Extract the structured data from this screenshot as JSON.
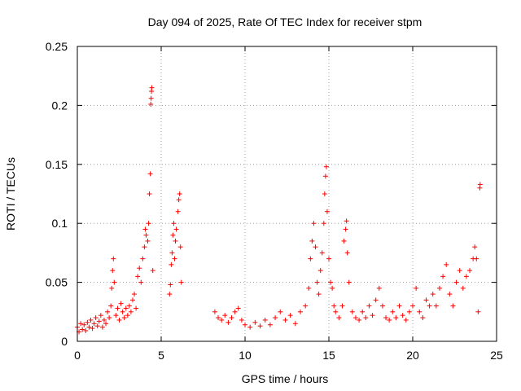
{
  "chart_data": {
    "type": "scatter",
    "title": "Day 094 of 2025, Rate Of TEC Index for receiver stpm",
    "xlabel": "GPS time / hours",
    "ylabel": "ROTI / TECUs",
    "xlim": [
      0,
      25
    ],
    "ylim": [
      0,
      0.25
    ],
    "xticks": [
      "0",
      "5",
      "10",
      "15",
      "20",
      "25"
    ],
    "yticks": [
      "0",
      "0.05",
      "0.1",
      "0.15",
      "0.2",
      "0.25"
    ],
    "grid": true,
    "marker": "+",
    "series_color": "#ff0000",
    "series": [
      {
        "name": "ROTI",
        "points": [
          [
            0.0,
            0.012
          ],
          [
            0.1,
            0.008
          ],
          [
            0.2,
            0.015
          ],
          [
            0.3,
            0.01
          ],
          [
            0.4,
            0.014
          ],
          [
            0.5,
            0.009
          ],
          [
            0.6,
            0.016
          ],
          [
            0.7,
            0.012
          ],
          [
            0.8,
            0.018
          ],
          [
            0.9,
            0.011
          ],
          [
            1.0,
            0.015
          ],
          [
            1.1,
            0.02
          ],
          [
            1.2,
            0.013
          ],
          [
            1.3,
            0.017
          ],
          [
            1.4,
            0.022
          ],
          [
            1.5,
            0.012
          ],
          [
            1.6,
            0.018
          ],
          [
            1.7,
            0.015
          ],
          [
            1.8,
            0.025
          ],
          [
            1.9,
            0.02
          ],
          [
            2.0,
            0.03
          ],
          [
            2.05,
            0.045
          ],
          [
            2.1,
            0.06
          ],
          [
            2.15,
            0.07
          ],
          [
            2.2,
            0.05
          ],
          [
            2.3,
            0.022
          ],
          [
            2.4,
            0.028
          ],
          [
            2.5,
            0.018
          ],
          [
            2.6,
            0.032
          ],
          [
            2.7,
            0.025
          ],
          [
            2.8,
            0.02
          ],
          [
            2.9,
            0.028
          ],
          [
            3.0,
            0.022
          ],
          [
            3.1,
            0.03
          ],
          [
            3.2,
            0.025
          ],
          [
            3.3,
            0.035
          ],
          [
            3.4,
            0.04
          ],
          [
            3.5,
            0.028
          ],
          [
            3.6,
            0.055
          ],
          [
            3.7,
            0.062
          ],
          [
            3.8,
            0.05
          ],
          [
            3.9,
            0.07
          ],
          [
            4.0,
            0.08
          ],
          [
            4.05,
            0.095
          ],
          [
            4.1,
            0.09
          ],
          [
            4.2,
            0.085
          ],
          [
            4.25,
            0.1
          ],
          [
            4.3,
            0.125
          ],
          [
            4.35,
            0.142
          ],
          [
            4.38,
            0.201
          ],
          [
            4.4,
            0.206
          ],
          [
            4.42,
            0.212
          ],
          [
            4.44,
            0.215
          ],
          [
            4.5,
            0.06
          ],
          [
            5.5,
            0.04
          ],
          [
            5.55,
            0.048
          ],
          [
            5.6,
            0.065
          ],
          [
            5.65,
            0.075
          ],
          [
            5.7,
            0.09
          ],
          [
            5.75,
            0.1
          ],
          [
            5.8,
            0.07
          ],
          [
            5.85,
            0.085
          ],
          [
            5.9,
            0.095
          ],
          [
            6.0,
            0.11
          ],
          [
            6.05,
            0.12
          ],
          [
            6.1,
            0.125
          ],
          [
            6.15,
            0.08
          ],
          [
            6.2,
            0.05
          ],
          [
            8.2,
            0.025
          ],
          [
            8.4,
            0.02
          ],
          [
            8.6,
            0.018
          ],
          [
            8.8,
            0.022
          ],
          [
            9.0,
            0.016
          ],
          [
            9.2,
            0.02
          ],
          [
            9.4,
            0.025
          ],
          [
            9.6,
            0.028
          ],
          [
            9.8,
            0.018
          ],
          [
            10.0,
            0.014
          ],
          [
            10.3,
            0.012
          ],
          [
            10.6,
            0.016
          ],
          [
            10.9,
            0.013
          ],
          [
            11.2,
            0.018
          ],
          [
            11.5,
            0.014
          ],
          [
            11.8,
            0.02
          ],
          [
            12.1,
            0.025
          ],
          [
            12.4,
            0.018
          ],
          [
            12.7,
            0.022
          ],
          [
            13.0,
            0.015
          ],
          [
            13.3,
            0.025
          ],
          [
            13.6,
            0.03
          ],
          [
            13.8,
            0.045
          ],
          [
            13.9,
            0.07
          ],
          [
            14.0,
            0.085
          ],
          [
            14.1,
            0.1
          ],
          [
            14.2,
            0.08
          ],
          [
            14.3,
            0.05
          ],
          [
            14.4,
            0.04
          ],
          [
            14.5,
            0.06
          ],
          [
            14.6,
            0.075
          ],
          [
            14.7,
            0.1
          ],
          [
            14.75,
            0.125
          ],
          [
            14.8,
            0.14
          ],
          [
            14.85,
            0.148
          ],
          [
            14.9,
            0.11
          ],
          [
            15.0,
            0.07
          ],
          [
            15.1,
            0.05
          ],
          [
            15.2,
            0.045
          ],
          [
            15.3,
            0.03
          ],
          [
            15.4,
            0.025
          ],
          [
            15.6,
            0.02
          ],
          [
            15.8,
            0.03
          ],
          [
            15.9,
            0.085
          ],
          [
            16.0,
            0.095
          ],
          [
            16.05,
            0.102
          ],
          [
            16.1,
            0.075
          ],
          [
            16.2,
            0.05
          ],
          [
            16.4,
            0.025
          ],
          [
            16.6,
            0.02
          ],
          [
            16.8,
            0.018
          ],
          [
            17.0,
            0.025
          ],
          [
            17.2,
            0.02
          ],
          [
            17.4,
            0.03
          ],
          [
            17.6,
            0.022
          ],
          [
            17.8,
            0.035
          ],
          [
            18.0,
            0.045
          ],
          [
            18.2,
            0.03
          ],
          [
            18.4,
            0.02
          ],
          [
            18.6,
            0.018
          ],
          [
            18.8,
            0.025
          ],
          [
            19.0,
            0.02
          ],
          [
            19.2,
            0.03
          ],
          [
            19.4,
            0.022
          ],
          [
            19.6,
            0.018
          ],
          [
            19.8,
            0.025
          ],
          [
            20.0,
            0.03
          ],
          [
            20.2,
            0.045
          ],
          [
            20.4,
            0.025
          ],
          [
            20.6,
            0.02
          ],
          [
            20.8,
            0.035
          ],
          [
            21.0,
            0.03
          ],
          [
            21.2,
            0.04
          ],
          [
            21.4,
            0.03
          ],
          [
            21.6,
            0.045
          ],
          [
            21.8,
            0.055
          ],
          [
            22.0,
            0.065
          ],
          [
            22.2,
            0.04
          ],
          [
            22.4,
            0.03
          ],
          [
            22.6,
            0.05
          ],
          [
            22.8,
            0.06
          ],
          [
            23.0,
            0.045
          ],
          [
            23.2,
            0.055
          ],
          [
            23.4,
            0.06
          ],
          [
            23.6,
            0.07
          ],
          [
            23.7,
            0.08
          ],
          [
            23.8,
            0.07
          ],
          [
            23.9,
            0.025
          ],
          [
            24.0,
            0.13
          ],
          [
            24.02,
            0.133
          ]
        ]
      }
    ]
  }
}
